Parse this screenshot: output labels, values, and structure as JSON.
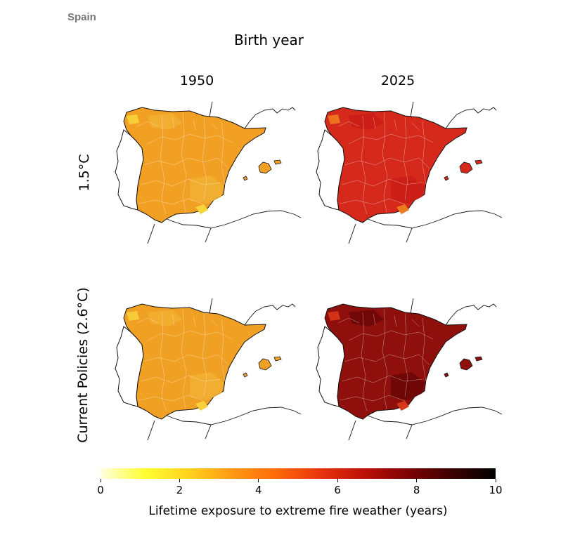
{
  "header": {
    "country": "Spain",
    "super_title": "Birth year"
  },
  "columns": [
    {
      "label": "1950"
    },
    {
      "label": "2025"
    }
  ],
  "rows": [
    {
      "label": "1.5°C"
    },
    {
      "label": "Current Policies (2.6°C)"
    }
  ],
  "panels": [
    {
      "row": 0,
      "col": 0,
      "level": "low",
      "main": "#f2a024",
      "alt": "#f0b133",
      "accent": "#f7d43a"
    },
    {
      "row": 0,
      "col": 1,
      "level": "high",
      "main": "#d5291c",
      "alt": "#c81c16",
      "accent": "#ee7a1f"
    },
    {
      "row": 1,
      "col": 0,
      "level": "low",
      "main": "#f0a022",
      "alt": "#f2b032",
      "accent": "#f8cf3c"
    },
    {
      "row": 1,
      "col": 1,
      "level": "very-high",
      "main": "#8e0f0b",
      "alt": "#6a0606",
      "accent": "#d8361a"
    }
  ],
  "colorbar": {
    "label": "Lifetime exposure to extreme fire weather (years)",
    "min": 0,
    "max": 10,
    "ticks": [
      "0",
      "2",
      "4",
      "6",
      "8",
      "10"
    ],
    "colors": [
      "#ffffe0",
      "#ffff33",
      "#ffd21f",
      "#ff9a14",
      "#ff6a0a",
      "#e8350c",
      "#bb1108",
      "#7e0303",
      "#3c0000",
      "#000000"
    ]
  }
}
